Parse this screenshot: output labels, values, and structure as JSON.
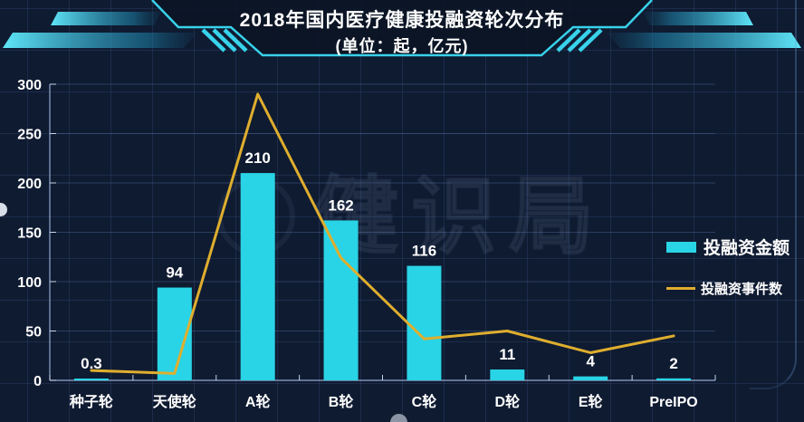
{
  "header": {
    "title": "2018年国内医疗健康投融资轮次分布",
    "subtitle": "(单位：起，亿元)"
  },
  "watermark": {
    "text": "健识局"
  },
  "colors": {
    "background": "#0F1B31",
    "grid": "#2A3B5E",
    "bar": "#29D4E6",
    "line": "#DFAE2E",
    "accent": "#3BDCF5",
    "text": "#FFFFFF"
  },
  "chart_data": {
    "type": "combo(bar+line)",
    "categories": [
      "种子轮",
      "天使轮",
      "A轮",
      "B轮",
      "C轮",
      "D轮",
      "E轮",
      "PreIPO"
    ],
    "series": [
      {
        "name": "投融资金额",
        "type": "bar",
        "unit": "亿元",
        "color": "#29D4E6",
        "values": [
          0.3,
          94,
          210,
          162,
          116,
          11,
          4,
          2
        ],
        "data_labels": [
          "0.3",
          "94",
          "210",
          "162",
          "116",
          "11",
          "4",
          "2"
        ]
      },
      {
        "name": "投融资事件数",
        "type": "line",
        "unit": "起",
        "color": "#DFAE2E",
        "values": [
          10,
          7,
          290,
          124,
          42,
          50,
          28,
          45
        ]
      }
    ],
    "title": "2018年国内医疗健康投融资轮次分布",
    "subtitle": "(单位：起，亿元)",
    "xlabel": "",
    "ylabel": "",
    "ylim": [
      0,
      300
    ],
    "yticks": [
      0,
      50,
      100,
      150,
      200,
      250,
      300
    ],
    "grid": true,
    "legend_position": "middle-right"
  }
}
